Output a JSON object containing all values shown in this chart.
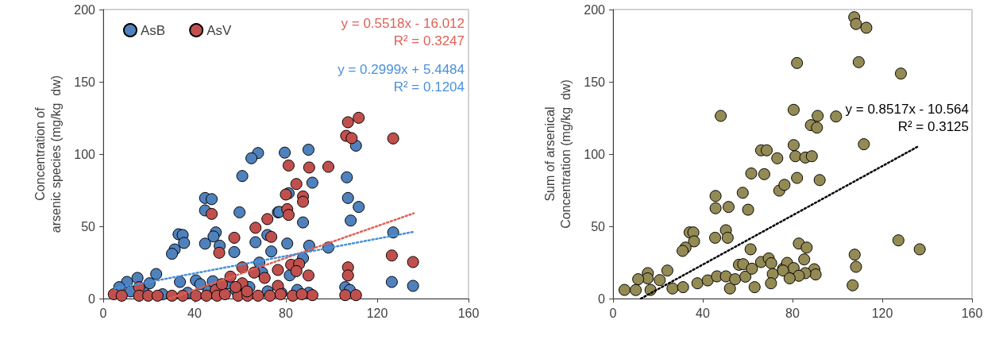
{
  "chart_data": [
    {
      "type": "scatter",
      "ylabel": "Concentration of\narsenic species (mg/kg  dw)",
      "xlim": [
        0,
        160
      ],
      "xticks": [
        0,
        40,
        80,
        120,
        160
      ],
      "ylim": [
        0,
        200
      ],
      "yticks": [
        0,
        50,
        100,
        150,
        200
      ],
      "grid": false,
      "legend": "top left",
      "marker": "circle",
      "annotations": [
        "y = 0.5518x - 16.012\nR² = 0.3247",
        "y = 0.2999x + 5.4484\nR² = 0.1204"
      ],
      "series": [
        {
          "name": "AsB",
          "color": "#4f81bd",
          "x": [
            67.8,
            64.9,
            60.9,
            44.6,
            47.5,
            44.6,
            59.7,
            76.5,
            33,
            34.8,
            35.4,
            31.3,
            30.1,
            49.3,
            48.3,
            44.6,
            51,
            57.4,
            66.7,
            71.9,
            73.6,
            68.4,
            23.2,
            20.3,
            15,
            10.4,
            7,
            33.6,
            40.6,
            42.5,
            54.5,
            69.6,
            64,
            79.5,
            89.9,
            91.6,
            81.2,
            77.1,
            87.5,
            106.7,
            107.2,
            111.9,
            108.4,
            110.7,
            80.6,
            90.2,
            98.6,
            127,
            126.4,
            135.7,
            106,
            81.7,
            87.5,
            12,
            18,
            26,
            37,
            46,
            58,
            72,
            78,
            85,
            90,
            48,
            108
          ],
          "values": [
            100.7,
            97.1,
            84.8,
            69.6,
            68.8,
            61,
            59.7,
            59.7,
            44.5,
            44,
            38.5,
            34,
            31,
            45.8,
            43,
            38,
            36.6,
            32.2,
            39,
            44,
            32.6,
            24.9,
            17,
            10.6,
            14.3,
            11.5,
            7.9,
            11.5,
            12.6,
            10,
            10.6,
            18,
            8,
            101,
            103,
            80.2,
            72.9,
            60,
            52.7,
            83.9,
            69.6,
            63.4,
            54,
            105.8,
            38.1,
            36.6,
            35.3,
            45.8,
            11.5,
            8.8,
            7.9,
            16.1,
            28,
            5,
            4,
            3,
            4,
            5,
            6,
            5,
            4,
            6,
            4,
            12,
            6
          ]
        },
        {
          "name": "AsV",
          "color": "#c0504d",
          "x": [
            111.9,
            107.2,
            106.4,
            108.8,
            127,
            81.2,
            90.2,
            98.6,
            84.6,
            80,
            87.5,
            87.5,
            80.6,
            81.2,
            107.2,
            107.2,
            126.4,
            135.7,
            91.6,
            106,
            110.7,
            82.3,
            85.8,
            84.6,
            89.9,
            71.9,
            66.7,
            73.6,
            47.5,
            57.4,
            50.8,
            60.9,
            76.5,
            55.7,
            60.9,
            66.1,
            70.7,
            76.5,
            49.3,
            15.7,
            4.6,
            8.1,
            15.7,
            19.7,
            23.8,
            30.1,
            34.8,
            40.6,
            45.2,
            49.9,
            53.3,
            59.1,
            63.2,
            67.8,
            73,
            77.7,
            83,
            87,
            52,
            58,
            63
          ],
          "values": [
            125.1,
            122,
            112.6,
            111,
            110.8,
            92.1,
            90.7,
            91.2,
            79.3,
            72,
            70.7,
            67,
            61.9,
            57.9,
            21.6,
            16,
            29.8,
            25.3,
            2.4,
            2.4,
            2.4,
            23.4,
            24,
            19,
            16,
            55,
            49,
            42.7,
            58.6,
            42.1,
            31.7,
            21.6,
            19.8,
            15.2,
            10.6,
            18,
            14.3,
            8.8,
            6,
            7.9,
            3,
            2,
            2,
            2,
            2,
            2,
            2,
            2,
            2,
            2,
            3,
            2,
            2,
            2,
            2,
            3,
            2,
            3,
            10,
            8,
            5
          ]
        },
        {
          "type": "line",
          "color": "#e06055",
          "line_style": "dotted",
          "marker": "none",
          "x": [
            29,
            136
          ],
          "values": [
            0,
            59
          ]
        },
        {
          "type": "line",
          "color": "#4a90d9",
          "line_style": "dotted",
          "marker": "none",
          "x": [
            5,
            136
          ],
          "values": [
            7,
            46.2
          ]
        }
      ]
    },
    {
      "type": "scatter",
      "ylabel": "Sum of arsenical\nConcentration (mg/kg  dw)",
      "xlim": [
        0,
        160
      ],
      "xticks": [
        0,
        40,
        80,
        120,
        160
      ],
      "ylim": [
        0,
        200
      ],
      "yticks": [
        0,
        50,
        100,
        150,
        200
      ],
      "grid": false,
      "marker": "circle",
      "annotations": [
        "y = 0.8517x - 10.564\nR² = 0.3125"
      ],
      "series": [
        {
          "color": "#948a54",
          "x": [
            48,
            66,
            68.5,
            73.2,
            61.6,
            67.4,
            57.8,
            45.7,
            45.7,
            51.5,
            60.2,
            74.1,
            76.4,
            34.1,
            35.8,
            36.1,
            32.3,
            31,
            50.3,
            45.5,
            51.1,
            61.3,
            24.2,
            20.8,
            15.5,
            15.4,
            11.2,
            5.1,
            10.1,
            16.7,
            26.5,
            31.2,
            37.6,
            42.2,
            46.3,
            50.3,
            52.1,
            54.4,
            56.1,
            58,
            59,
            63.1,
            61.9,
            66,
            69.4,
            70.5,
            71.2,
            70.4,
            75.8,
            107.5,
            108.3,
            112.9,
            82,
            109.5,
            128.3,
            80.5,
            91.2,
            99.4,
            88.2,
            90.9,
            80.5,
            111.8,
            81.3,
            85.7,
            88.6,
            82,
            92.1,
            127.2,
            136.7,
            107.7,
            108.3,
            106.8,
            82.8,
            86.3,
            85.2,
            77.6,
            80.5,
            75.8,
            89.7,
            90.3,
            85.7,
            82.8,
            78.7
          ],
          "values": [
            126.4,
            102.6,
            102.6,
            97.1,
            86.6,
            86.1,
            73.2,
            71,
            62.5,
            63.4,
            61.5,
            74.7,
            78.7,
            45.8,
            45.8,
            39.6,
            35.3,
            33,
            47.3,
            42.1,
            42.1,
            34.1,
            19.4,
            12.8,
            17.6,
            14,
            13.4,
            6,
            5.9,
            6,
            7,
            7.9,
            10.6,
            12.6,
            15.4,
            15.4,
            7,
            13.4,
            23.4,
            23.8,
            15.2,
            7.9,
            20.7,
            25.3,
            27.8,
            24.5,
            17,
            10.6,
            20.7,
            194.7,
            190,
            187.4,
            163,
            163.6,
            155.7,
            130.6,
            126.4,
            126,
            120,
            118.3,
            106.2,
            106.8,
            98.5,
            97.6,
            98.5,
            83.5,
            82,
            40.3,
            34.1,
            30.4,
            22,
            9.2,
            38.1,
            35.3,
            27.1,
            24.7,
            21.1,
            19.4,
            20.3,
            16.7,
            17.6,
            15.8,
            14
          ]
        },
        {
          "type": "line",
          "color": "#000000",
          "line_style": "dotted",
          "marker": "none",
          "x": [
            12.4,
            136
          ],
          "values": [
            0,
            105.3
          ]
        }
      ]
    }
  ]
}
